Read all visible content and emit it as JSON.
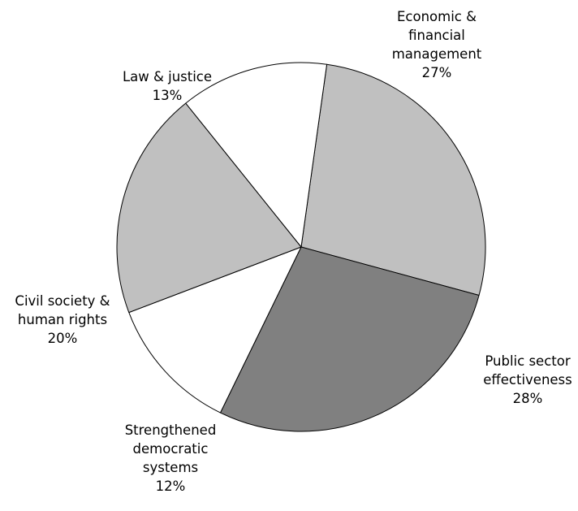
{
  "chart_data": {
    "type": "pie",
    "title": "",
    "slices": [
      {
        "label_lines": [
          "Economic &",
          "financial",
          "management"
        ],
        "value_text": "27%",
        "value": 27,
        "color": "#c0c0c0"
      },
      {
        "label_lines": [
          "Public sector",
          "effectiveness"
        ],
        "value_text": "28%",
        "value": 28,
        "color": "#808080"
      },
      {
        "label_lines": [
          "Strengthened",
          "democratic",
          "systems"
        ],
        "value_text": "12%",
        "value": 12,
        "color": "#ffffff"
      },
      {
        "label_lines": [
          "Civil society &",
          "human rights"
        ],
        "value_text": "20%",
        "value": 20,
        "color": "#c0c0c0"
      },
      {
        "label_lines": [
          "Law & justice"
        ],
        "value_text": "13%",
        "value": 13,
        "color": "#ffffff"
      }
    ],
    "start_direction": "top, clockwise",
    "legend": "none",
    "border_color": "#000000"
  }
}
